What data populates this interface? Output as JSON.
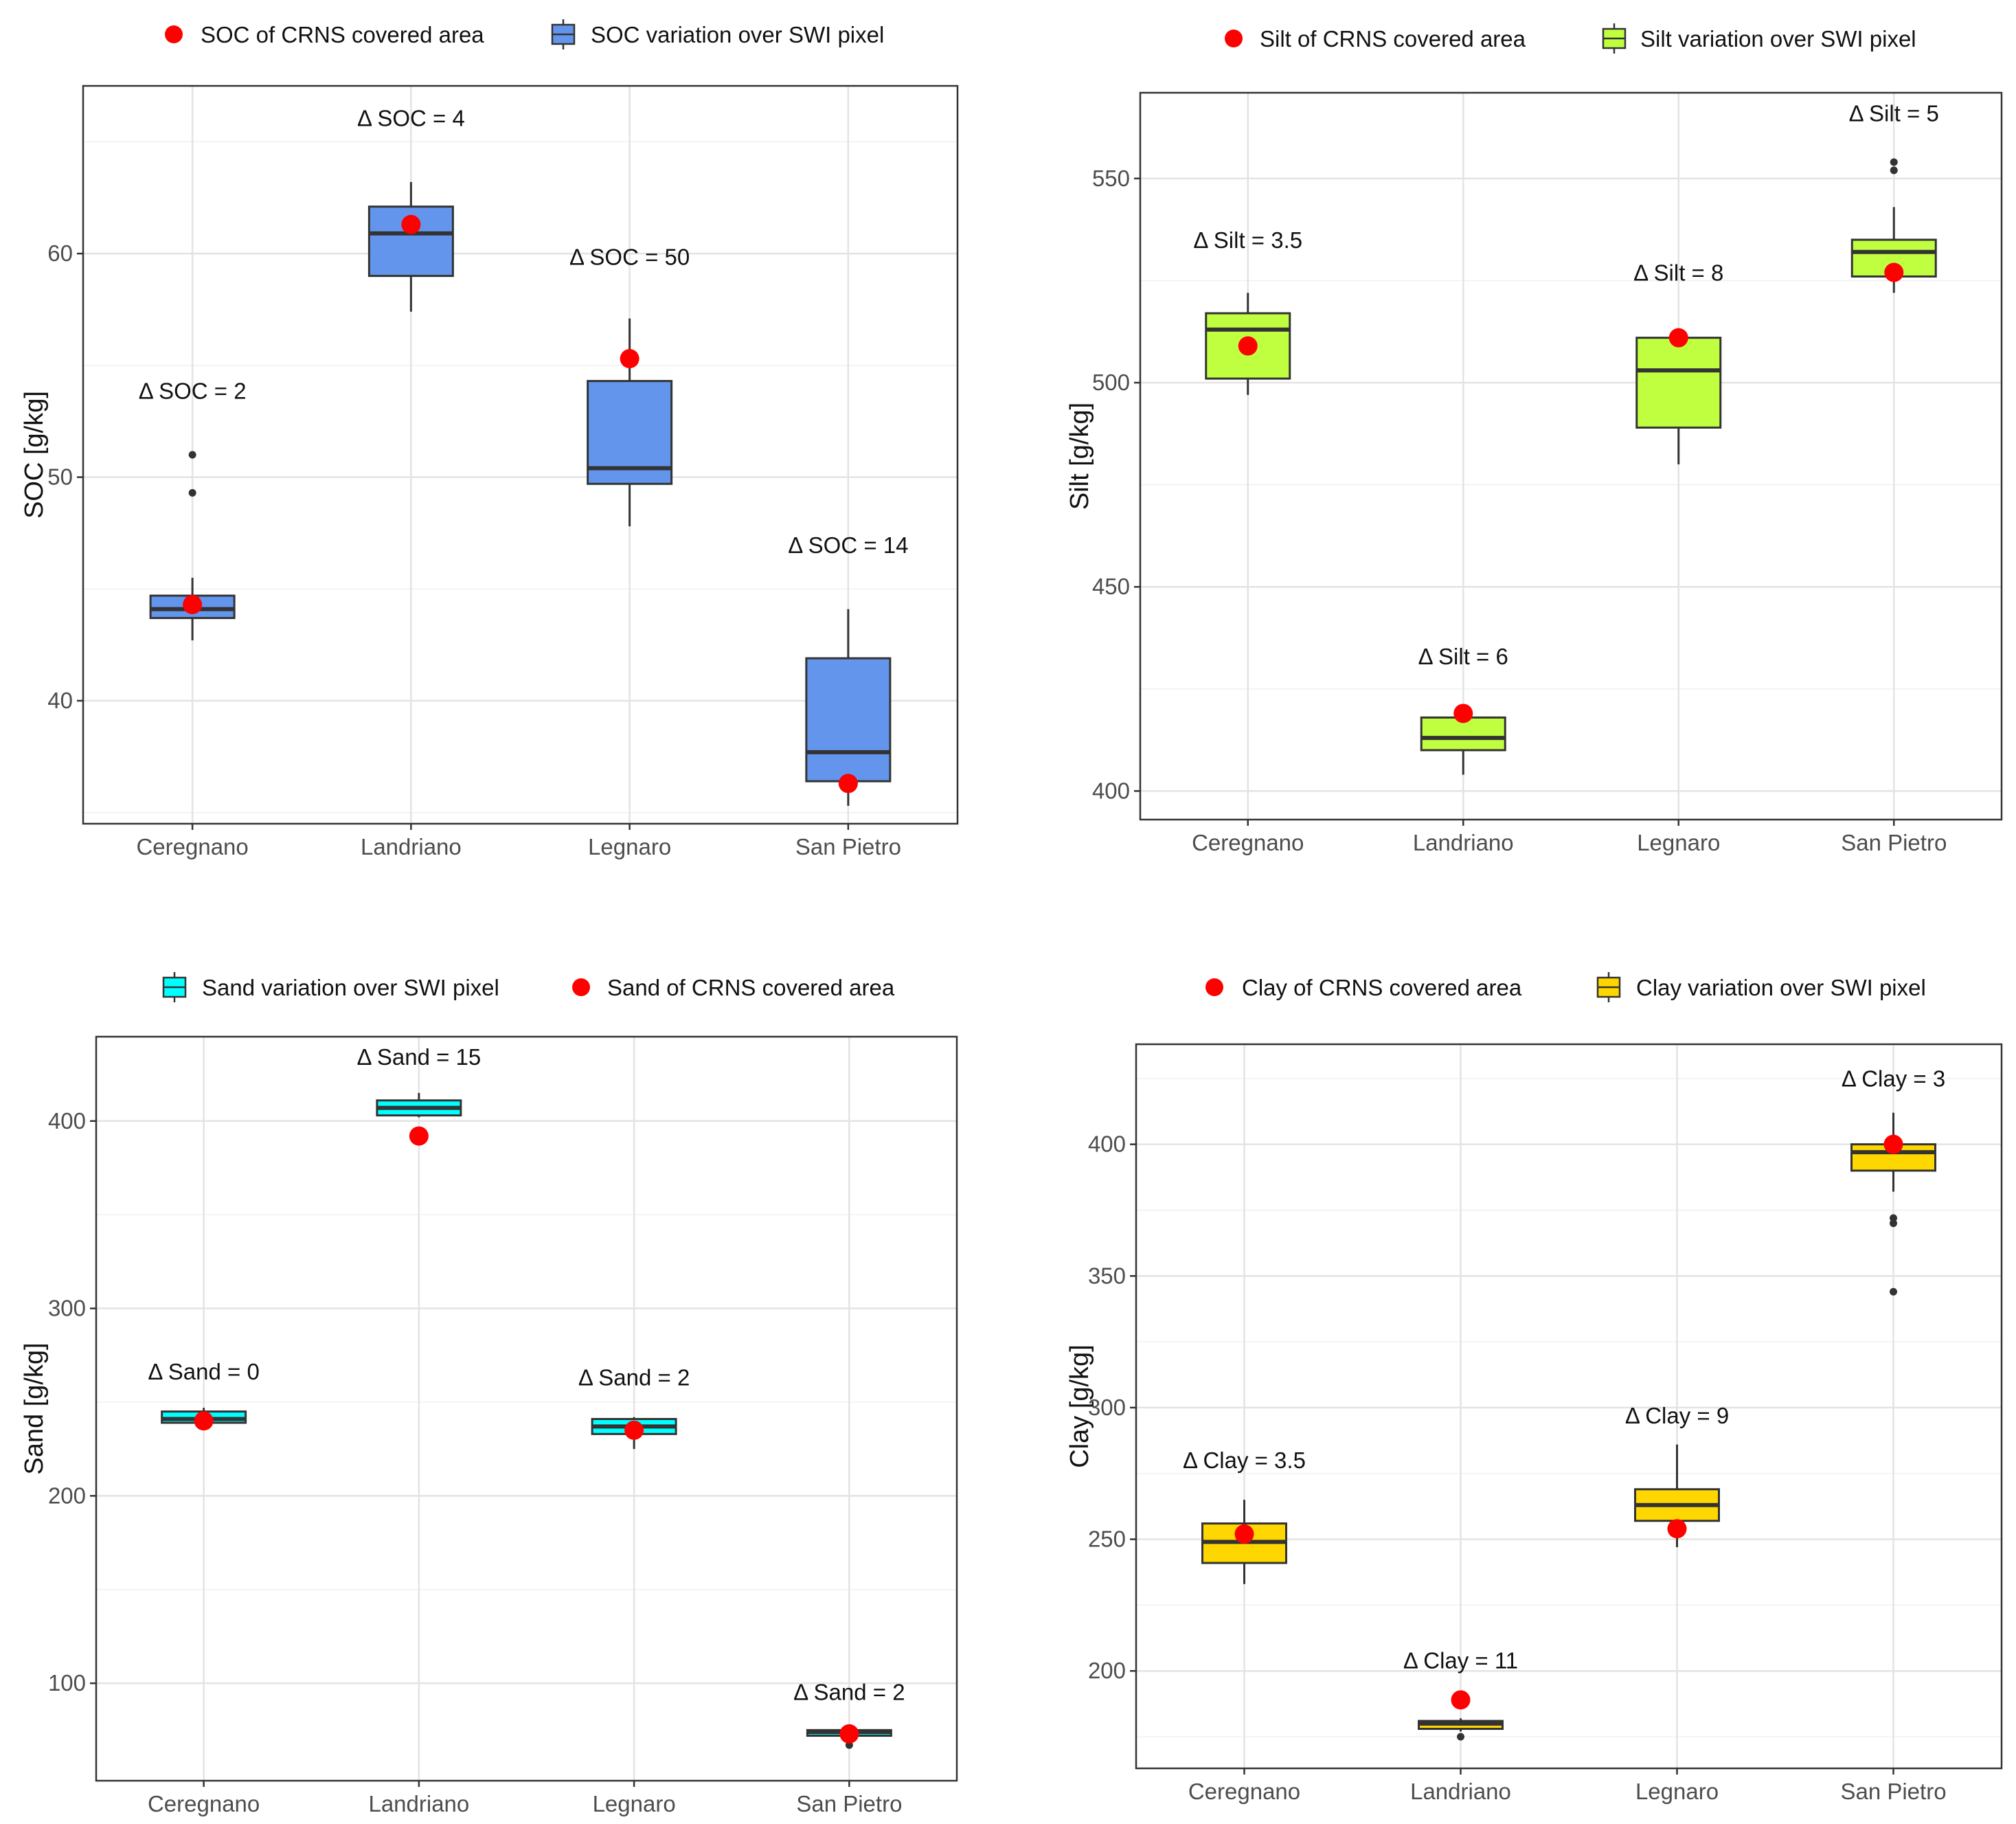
{
  "chart_data": [
    {
      "type": "box",
      "id": "soc",
      "ylabel": "SOC [g/kg]",
      "ylim": [
        34.5,
        67.5
      ],
      "yticks": [
        40,
        50,
        60
      ],
      "minor_ticks": [
        35,
        45,
        55,
        65
      ],
      "categories": [
        "Ceregnano",
        "Landriano",
        "Legnaro",
        "San Pietro"
      ],
      "box_color": "#6495ED",
      "point_color": "#FF0000",
      "legend": [
        {
          "kind": "point",
          "label": "SOC of CRNS covered area"
        },
        {
          "kind": "box",
          "label": "SOC variation over SWI pixel"
        }
      ],
      "boxes": [
        {
          "category": "Ceregnano",
          "whisker_low": 42.7,
          "q1": 43.7,
          "median": 44.1,
          "q3": 44.7,
          "whisker_high": 45.5,
          "outliers": [
            49.3,
            51.0
          ],
          "crns": 44.3,
          "delta": "Δ SOC = 2",
          "delta_value": 53.5
        },
        {
          "category": "Landriano",
          "whisker_low": 57.4,
          "q1": 59.0,
          "median": 60.9,
          "q3": 62.1,
          "whisker_high": 63.2,
          "outliers": [],
          "crns": 61.3,
          "delta": "Δ SOC = 4",
          "delta_value": 65.7
        },
        {
          "category": "Legnaro",
          "whisker_low": 47.8,
          "q1": 49.7,
          "median": 50.4,
          "q3": 54.3,
          "whisker_high": 57.1,
          "outliers": [],
          "crns": 55.3,
          "delta": "Δ SOC = 50",
          "delta_value": 59.5
        },
        {
          "category": "San Pietro",
          "whisker_low": 35.3,
          "q1": 36.4,
          "median": 37.7,
          "q3": 41.9,
          "whisker_high": 44.1,
          "outliers": [],
          "crns": 36.3,
          "delta": "Δ SOC = 14",
          "delta_value": 46.6
        }
      ]
    },
    {
      "type": "box",
      "id": "silt",
      "ylabel": "Silt [g/kg]",
      "ylim": [
        393,
        571
      ],
      "yticks": [
        400,
        450,
        500,
        550
      ],
      "minor_ticks": [
        425,
        475,
        525
      ],
      "categories": [
        "Ceregnano",
        "Landriano",
        "Legnaro",
        "San Pietro"
      ],
      "box_color": "#BFFF3F",
      "point_color": "#FF0000",
      "legend": [
        {
          "kind": "point",
          "label": "Silt of CRNS covered area"
        },
        {
          "kind": "box",
          "label": "Silt variation over SWI pixel"
        }
      ],
      "boxes": [
        {
          "category": "Ceregnano",
          "whisker_low": 497,
          "q1": 501,
          "median": 513,
          "q3": 517,
          "whisker_high": 522,
          "outliers": [],
          "crns": 509,
          "delta": "Δ Silt = 3.5",
          "delta_value": 533
        },
        {
          "category": "Landriano",
          "whisker_low": 404,
          "q1": 410,
          "median": 413,
          "q3": 418,
          "whisker_high": 418,
          "outliers": [],
          "crns": 419,
          "delta": "Δ Silt = 6",
          "delta_value": 431
        },
        {
          "category": "Legnaro",
          "whisker_low": 480,
          "q1": 489,
          "median": 503,
          "q3": 511,
          "whisker_high": 513,
          "outliers": [],
          "crns": 511,
          "delta": "Δ Silt = 8",
          "delta_value": 525
        },
        {
          "category": "San Pietro",
          "whisker_low": 522,
          "q1": 526,
          "median": 532,
          "q3": 535,
          "whisker_high": 543,
          "outliers": [
            552,
            554
          ],
          "crns": 527,
          "delta": "Δ Silt = 5",
          "delta_value": 564
        }
      ]
    },
    {
      "type": "box",
      "id": "sand",
      "ylabel": "Sand [g/kg]",
      "ylim": [
        48,
        445
      ],
      "yticks": [
        100,
        200,
        300,
        400
      ],
      "minor_ticks": [
        150,
        250,
        350
      ],
      "categories": [
        "Ceregnano",
        "Landriano",
        "Legnaro",
        "San Pietro"
      ],
      "box_color": "#00FFFF",
      "point_color": "#FF0000",
      "legend": [
        {
          "kind": "box",
          "label": "Sand variation over SWI pixel"
        },
        {
          "kind": "point",
          "label": "Sand of CRNS covered area"
        }
      ],
      "boxes": [
        {
          "category": "Ceregnano",
          "whisker_low": 238,
          "q1": 239,
          "median": 241,
          "q3": 245,
          "whisker_high": 247,
          "outliers": [],
          "crns": 240,
          "delta": "Δ Sand = 0",
          "delta_value": 262
        },
        {
          "category": "Landriano",
          "whisker_low": 402,
          "q1": 403,
          "median": 407,
          "q3": 411,
          "whisker_high": 415,
          "outliers": [],
          "crns": 392,
          "delta": "Δ Sand = 15",
          "delta_value": 430
        },
        {
          "category": "Legnaro",
          "whisker_low": 225,
          "q1": 233,
          "median": 237,
          "q3": 241,
          "whisker_high": 242,
          "outliers": [],
          "crns": 235,
          "delta": "Δ Sand = 2",
          "delta_value": 259
        },
        {
          "category": "San Pietro",
          "whisker_low": 71,
          "q1": 72,
          "median": 74,
          "q3": 75,
          "whisker_high": 76,
          "outliers": [
            67
          ],
          "crns": 73,
          "delta": "Δ Sand = 2",
          "delta_value": 91
        }
      ]
    },
    {
      "type": "box",
      "id": "clay",
      "ylabel": "Clay [g/kg]",
      "ylim": [
        163,
        438
      ],
      "yticks": [
        200,
        250,
        300,
        350,
        400
      ],
      "minor_ticks": [
        175,
        225,
        275,
        325,
        375,
        425
      ],
      "categories": [
        "Ceregnano",
        "Landriano",
        "Legnaro",
        "San Pietro"
      ],
      "box_color": "#FFD700",
      "point_color": "#FF0000",
      "legend": [
        {
          "kind": "point",
          "label": "Clay of CRNS covered area"
        },
        {
          "kind": "box",
          "label": "Clay variation over SWI pixel"
        }
      ],
      "boxes": [
        {
          "category": "Ceregnano",
          "whisker_low": 233,
          "q1": 241,
          "median": 249,
          "q3": 256,
          "whisker_high": 265,
          "outliers": [],
          "crns": 252,
          "delta": "Δ Clay = 3.5",
          "delta_value": 277
        },
        {
          "category": "Landriano",
          "whisker_low": 177,
          "q1": 178,
          "median": 180,
          "q3": 181,
          "whisker_high": 182,
          "outliers": [
            175
          ],
          "crns": 189,
          "delta": "Δ Clay = 11",
          "delta_value": 201
        },
        {
          "category": "Legnaro",
          "whisker_low": 247,
          "q1": 257,
          "median": 263,
          "q3": 269,
          "whisker_high": 286,
          "outliers": [],
          "crns": 254,
          "delta": "Δ Clay = 9",
          "delta_value": 294
        },
        {
          "category": "San Pietro",
          "whisker_low": 382,
          "q1": 390,
          "median": 397,
          "q3": 400,
          "whisker_high": 412,
          "outliers": [
            344,
            370,
            372
          ],
          "crns": 400,
          "delta": "Δ Clay = 3",
          "delta_value": 422
        }
      ]
    }
  ]
}
